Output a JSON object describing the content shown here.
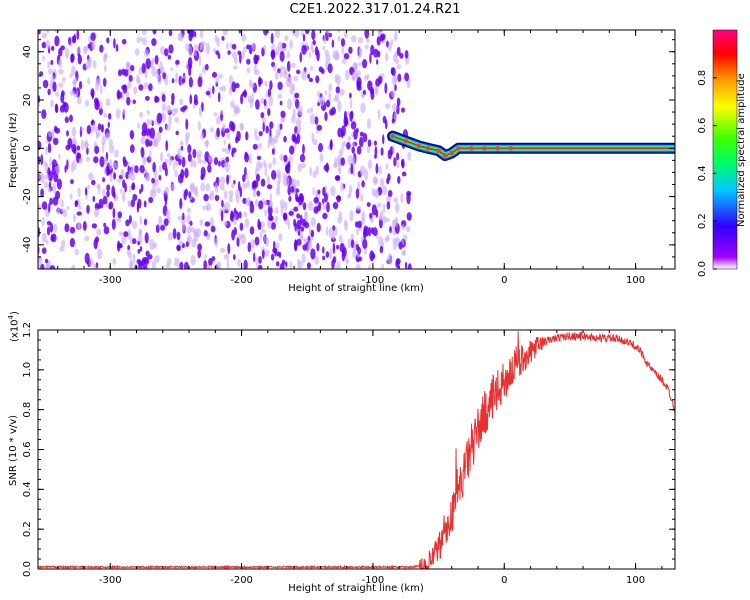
{
  "title": "C2E1.2022.317.01.24.R21",
  "colors": {
    "snr_line": "#e83030",
    "specgram_main": "#6a00f0",
    "specgram_light": "#c8a8f8"
  },
  "chart_data": [
    {
      "type": "heatmap",
      "name": "spectrogram",
      "xlabel": "Height of straight line (km)",
      "ylabel": "Frequency (Hz)",
      "xlim": [
        -355,
        130
      ],
      "ylim": [
        -50,
        49
      ],
      "xticks": [
        "-300",
        "-200",
        "-100",
        "0",
        "100"
      ],
      "xtick_values": [
        -300,
        -200,
        -100,
        0,
        100
      ],
      "yticks": [
        "-40",
        "-20",
        "0",
        "20",
        "40"
      ],
      "ytick_values": [
        -40,
        -20,
        0,
        20,
        40
      ],
      "noise_region_x": [
        -355,
        -75
      ],
      "signal_track": {
        "x": [
          -85,
          -75,
          -65,
          -58,
          -50,
          -45,
          -40,
          -35,
          -25,
          -15,
          -5,
          5,
          130
        ],
        "frequency": [
          5,
          3,
          1,
          0,
          -1,
          -3,
          -2,
          0,
          0,
          0,
          0,
          0,
          0
        ]
      },
      "colorbar": {
        "label": "Normalized spectral amplitude",
        "ticks": [
          "0.0",
          "0.2",
          "0.4",
          "0.6",
          "0.8"
        ],
        "tick_values": [
          0.0,
          0.2,
          0.4,
          0.6,
          0.8
        ],
        "range": [
          0,
          1
        ],
        "grid": false
      },
      "grid": false
    },
    {
      "type": "line",
      "name": "snr",
      "xlabel": "Height of straight line (km)",
      "ylabel": "SNR (10 * v/v)",
      "multiplier_label": "(x10",
      "multiplier_exp": "4",
      "multiplier_close": ")",
      "xlim": [
        -355,
        130
      ],
      "ylim": [
        0,
        1.2
      ],
      "xticks": [
        "-300",
        "-200",
        "-100",
        "0",
        "100"
      ],
      "xtick_values": [
        -300,
        -200,
        -100,
        0,
        100
      ],
      "yticks": [
        "0.0",
        "0.2",
        "0.4",
        "0.6",
        "0.8",
        "1.0",
        "1.2"
      ],
      "ytick_values": [
        0.0,
        0.2,
        0.4,
        0.6,
        0.8,
        1.0,
        1.2
      ],
      "series": [
        {
          "x": [
            -355,
            -100,
            -70,
            -60,
            -55,
            -50,
            -45,
            -40,
            -35,
            -30,
            -25,
            -20,
            -15,
            -10,
            -5,
            0,
            5,
            10,
            15,
            20,
            25,
            30,
            40,
            50,
            60,
            70,
            80,
            90,
            100,
            105,
            110,
            115,
            120,
            125,
            130
          ],
          "y": [
            0.01,
            0.01,
            0.01,
            0.02,
            0.05,
            0.1,
            0.17,
            0.27,
            0.38,
            0.5,
            0.6,
            0.7,
            0.78,
            0.84,
            0.89,
            0.94,
            0.99,
            1.03,
            1.06,
            1.09,
            1.12,
            1.14,
            1.16,
            1.17,
            1.17,
            1.16,
            1.16,
            1.15,
            1.12,
            1.08,
            1.02,
            0.98,
            0.95,
            0.9,
            0.8
          ]
        }
      ],
      "grid": false
    }
  ]
}
